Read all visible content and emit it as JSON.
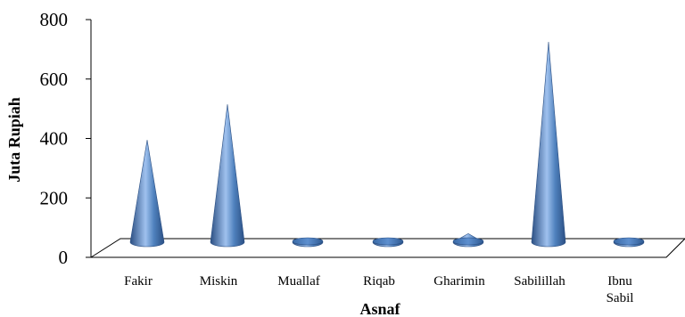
{
  "chart_data": {
    "type": "bar",
    "bar_shape": "3d-cone",
    "categories": [
      [
        "Fakir"
      ],
      [
        "Miskin"
      ],
      [
        "Muallaf"
      ],
      [
        "Riqab"
      ],
      [
        "Gharimin"
      ],
      [
        "Sabilillah"
      ],
      [
        "Ibnu",
        "Sabil"
      ]
    ],
    "values": [
      395,
      515,
      8,
      6,
      80,
      725,
      12
    ],
    "xlabel": "Asnaf",
    "ylabel": "Juta Rupiah",
    "ylim": [
      0,
      800
    ],
    "yticks": [
      0,
      200,
      400,
      600,
      800
    ],
    "grid": false,
    "legend": "none",
    "colors": {
      "cone_light": "#9fc1ee",
      "cone_mid": "#4f81bd",
      "cone_dark": "#2b4f83",
      "floor_stroke": "#000000"
    }
  }
}
